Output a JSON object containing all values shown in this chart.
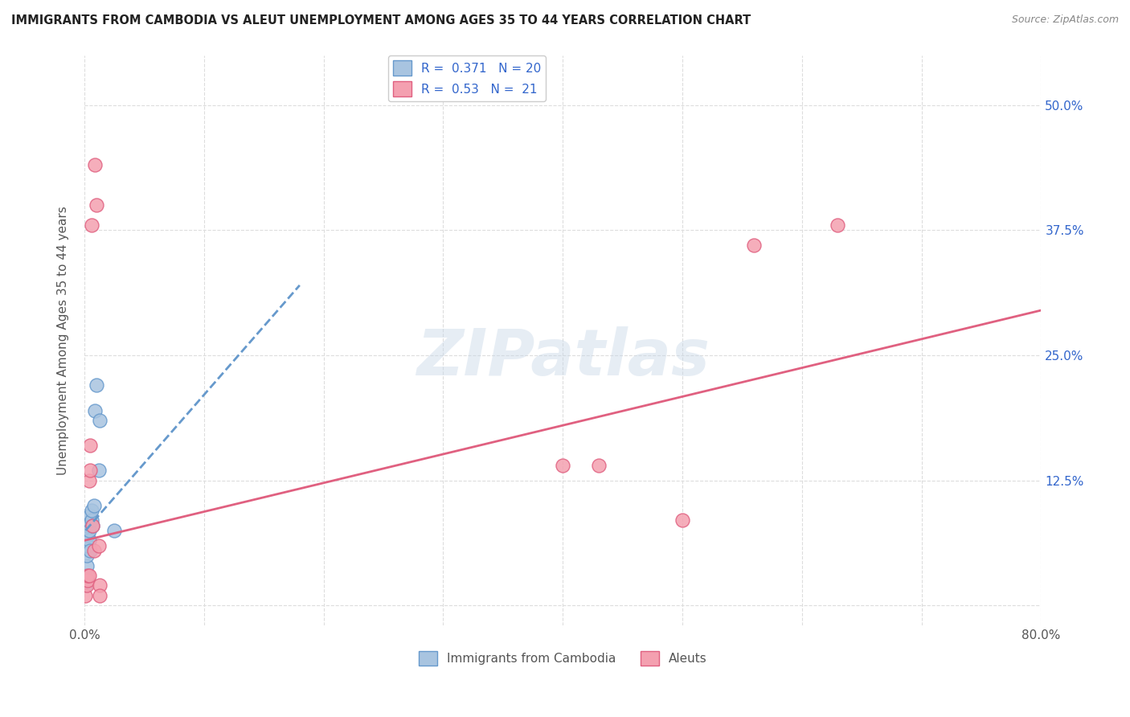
{
  "title": "IMMIGRANTS FROM CAMBODIA VS ALEUT UNEMPLOYMENT AMONG AGES 35 TO 44 YEARS CORRELATION CHART",
  "source": "Source: ZipAtlas.com",
  "xlabel": "",
  "ylabel": "Unemployment Among Ages 35 to 44 years",
  "xlim": [
    0.0,
    0.8
  ],
  "ylim": [
    -0.02,
    0.55
  ],
  "xticks": [
    0.0,
    0.1,
    0.2,
    0.3,
    0.4,
    0.5,
    0.6,
    0.7,
    0.8
  ],
  "xticklabels": [
    "0.0%",
    "",
    "",
    "",
    "",
    "",
    "",
    "",
    "80.0%"
  ],
  "ytick_positions": [
    0.0,
    0.125,
    0.25,
    0.375,
    0.5
  ],
  "ytick_labels": [
    "",
    "12.5%",
    "25.0%",
    "37.5%",
    "50.0%"
  ],
  "cambodia_R": 0.371,
  "cambodia_N": 20,
  "aleut_R": 0.53,
  "aleut_N": 21,
  "cambodia_color": "#a8c4e0",
  "aleut_color": "#f4a0b0",
  "cambodia_line_color": "#6699cc",
  "aleut_line_color": "#e06080",
  "cambodia_scatter": [
    [
      0.001,
      0.02
    ],
    [
      0.001,
      0.03
    ],
    [
      0.002,
      0.04
    ],
    [
      0.002,
      0.05
    ],
    [
      0.003,
      0.06
    ],
    [
      0.003,
      0.07
    ],
    [
      0.003,
      0.08
    ],
    [
      0.004,
      0.065
    ],
    [
      0.004,
      0.075
    ],
    [
      0.005,
      0.055
    ],
    [
      0.005,
      0.09
    ],
    [
      0.006,
      0.085
    ],
    [
      0.006,
      0.095
    ],
    [
      0.007,
      0.08
    ],
    [
      0.008,
      0.1
    ],
    [
      0.009,
      0.195
    ],
    [
      0.01,
      0.22
    ],
    [
      0.012,
      0.135
    ],
    [
      0.013,
      0.185
    ],
    [
      0.025,
      0.075
    ]
  ],
  "aleut_scatter": [
    [
      0.001,
      0.01
    ],
    [
      0.002,
      0.02
    ],
    [
      0.003,
      0.025
    ],
    [
      0.003,
      0.03
    ],
    [
      0.004,
      0.03
    ],
    [
      0.004,
      0.125
    ],
    [
      0.005,
      0.135
    ],
    [
      0.005,
      0.16
    ],
    [
      0.006,
      0.38
    ],
    [
      0.007,
      0.08
    ],
    [
      0.008,
      0.055
    ],
    [
      0.009,
      0.44
    ],
    [
      0.01,
      0.4
    ],
    [
      0.012,
      0.06
    ],
    [
      0.013,
      0.02
    ],
    [
      0.013,
      0.01
    ],
    [
      0.4,
      0.14
    ],
    [
      0.43,
      0.14
    ],
    [
      0.5,
      0.085
    ],
    [
      0.56,
      0.36
    ],
    [
      0.63,
      0.38
    ]
  ],
  "cambodia_trendline_x": [
    0.001,
    0.18
  ],
  "cambodia_trendline_y": [
    0.075,
    0.32
  ],
  "aleut_trendline_x": [
    0.0,
    0.8
  ],
  "aleut_trendline_y": [
    0.065,
    0.295
  ],
  "watermark": "ZIPatlas",
  "bg_color": "#ffffff",
  "grid_color": "#dddddd"
}
